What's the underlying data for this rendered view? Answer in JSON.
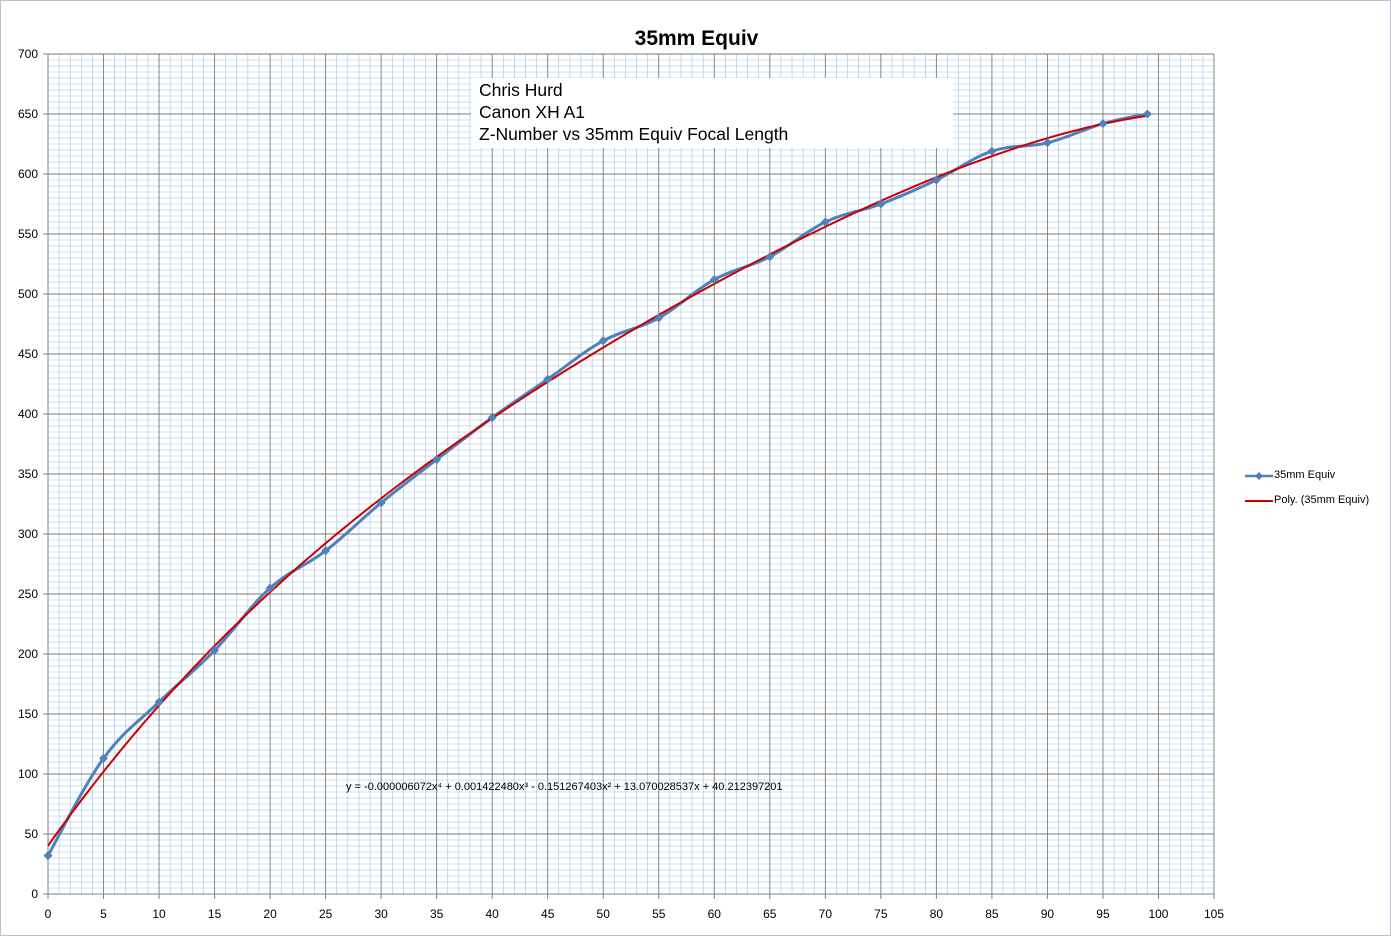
{
  "chart_data": {
    "type": "line",
    "title": "35mm Equiv",
    "xlabel": "",
    "ylabel": "",
    "xlim": [
      0,
      105
    ],
    "ylim": [
      0,
      700
    ],
    "x_ticks": [
      0,
      5,
      10,
      15,
      20,
      25,
      30,
      35,
      40,
      45,
      50,
      55,
      60,
      65,
      70,
      75,
      80,
      85,
      90,
      95,
      100,
      105
    ],
    "y_ticks": [
      0,
      50,
      100,
      150,
      200,
      250,
      300,
      350,
      400,
      450,
      500,
      550,
      600,
      650,
      700
    ],
    "grid": true,
    "minor_grid": true,
    "legend_position": "right",
    "series": [
      {
        "name": "35mm Equiv",
        "color": "#4f81bd",
        "marker": "diamond",
        "x": [
          0,
          5,
          10,
          15,
          20,
          25,
          30,
          35,
          40,
          45,
          50,
          55,
          60,
          65,
          70,
          75,
          80,
          85,
          90,
          95,
          99
        ],
        "y": [
          32,
          113,
          160,
          203,
          255,
          286,
          326,
          362,
          397,
          429,
          461,
          480,
          512,
          531,
          560,
          575,
          595,
          619,
          626,
          642,
          650
        ]
      },
      {
        "name": "Poly. (35mm Equiv)",
        "color": "#cc0000",
        "trendline": "polynomial",
        "order": 4,
        "coefficients": [
          -6.072e-06,
          0.00142248,
          -0.151267403,
          13.070028537,
          40.212397201
        ],
        "x_range": [
          0,
          99
        ]
      }
    ],
    "annotations": [
      {
        "lines": [
          "Chris Hurd",
          "Canon XH A1",
          "Z-Number vs 35mm Equiv Focal Length"
        ]
      },
      {
        "equation": "y = -0.000006072x⁴ + 0.001422480x³ - 0.151267403x² + 13.070028537x + 40.212397201"
      }
    ]
  }
}
